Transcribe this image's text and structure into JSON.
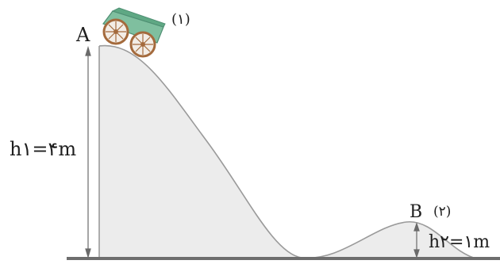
{
  "diagram": {
    "point_a_label": "A",
    "point_b_label": "B",
    "cart_position_1_label": "(۱)",
    "cart_position_2_label": "(۲)",
    "height_1_label": "h۱=۴m",
    "height_2_label": "h۲=۱m"
  },
  "colors": {
    "hill_fill": "#ececec",
    "ground": "#6e6e6e",
    "cart_body": "#7fbf9f",
    "wheel": "#a46a3c",
    "text": "#1e1e1e"
  }
}
